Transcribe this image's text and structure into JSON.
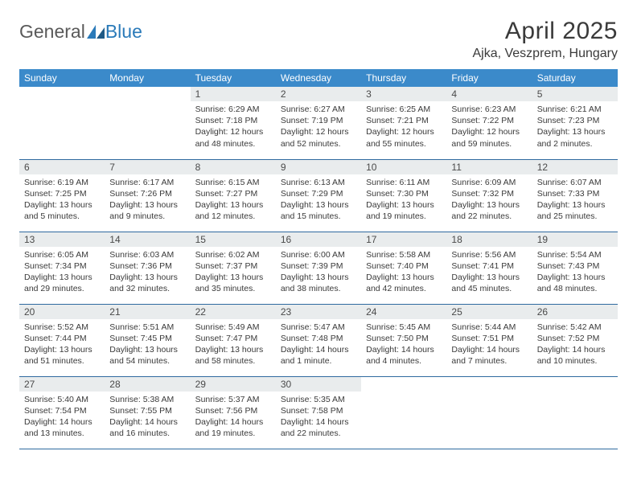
{
  "logo": {
    "word1": "General",
    "word2": "Blue"
  },
  "title": "April 2025",
  "location": "Ajka, Veszprem, Hungary",
  "colors": {
    "header_bg": "#3b8aca",
    "header_text": "#ffffff",
    "daynum_bg": "#e9eced",
    "row_border": "#2f6aa0",
    "body_text": "#3a3a3a",
    "logo_gray": "#5a5a5a",
    "logo_blue": "#2a7ab9"
  },
  "weekdays": [
    "Sunday",
    "Monday",
    "Tuesday",
    "Wednesday",
    "Thursday",
    "Friday",
    "Saturday"
  ],
  "weeks": [
    [
      null,
      null,
      {
        "n": "1",
        "sunrise": "6:29 AM",
        "sunset": "7:18 PM",
        "daylight": "12 hours and 48 minutes."
      },
      {
        "n": "2",
        "sunrise": "6:27 AM",
        "sunset": "7:19 PM",
        "daylight": "12 hours and 52 minutes."
      },
      {
        "n": "3",
        "sunrise": "6:25 AM",
        "sunset": "7:21 PM",
        "daylight": "12 hours and 55 minutes."
      },
      {
        "n": "4",
        "sunrise": "6:23 AM",
        "sunset": "7:22 PM",
        "daylight": "12 hours and 59 minutes."
      },
      {
        "n": "5",
        "sunrise": "6:21 AM",
        "sunset": "7:23 PM",
        "daylight": "13 hours and 2 minutes."
      }
    ],
    [
      {
        "n": "6",
        "sunrise": "6:19 AM",
        "sunset": "7:25 PM",
        "daylight": "13 hours and 5 minutes."
      },
      {
        "n": "7",
        "sunrise": "6:17 AM",
        "sunset": "7:26 PM",
        "daylight": "13 hours and 9 minutes."
      },
      {
        "n": "8",
        "sunrise": "6:15 AM",
        "sunset": "7:27 PM",
        "daylight": "13 hours and 12 minutes."
      },
      {
        "n": "9",
        "sunrise": "6:13 AM",
        "sunset": "7:29 PM",
        "daylight": "13 hours and 15 minutes."
      },
      {
        "n": "10",
        "sunrise": "6:11 AM",
        "sunset": "7:30 PM",
        "daylight": "13 hours and 19 minutes."
      },
      {
        "n": "11",
        "sunrise": "6:09 AM",
        "sunset": "7:32 PM",
        "daylight": "13 hours and 22 minutes."
      },
      {
        "n": "12",
        "sunrise": "6:07 AM",
        "sunset": "7:33 PM",
        "daylight": "13 hours and 25 minutes."
      }
    ],
    [
      {
        "n": "13",
        "sunrise": "6:05 AM",
        "sunset": "7:34 PM",
        "daylight": "13 hours and 29 minutes."
      },
      {
        "n": "14",
        "sunrise": "6:03 AM",
        "sunset": "7:36 PM",
        "daylight": "13 hours and 32 minutes."
      },
      {
        "n": "15",
        "sunrise": "6:02 AM",
        "sunset": "7:37 PM",
        "daylight": "13 hours and 35 minutes."
      },
      {
        "n": "16",
        "sunrise": "6:00 AM",
        "sunset": "7:39 PM",
        "daylight": "13 hours and 38 minutes."
      },
      {
        "n": "17",
        "sunrise": "5:58 AM",
        "sunset": "7:40 PM",
        "daylight": "13 hours and 42 minutes."
      },
      {
        "n": "18",
        "sunrise": "5:56 AM",
        "sunset": "7:41 PM",
        "daylight": "13 hours and 45 minutes."
      },
      {
        "n": "19",
        "sunrise": "5:54 AM",
        "sunset": "7:43 PM",
        "daylight": "13 hours and 48 minutes."
      }
    ],
    [
      {
        "n": "20",
        "sunrise": "5:52 AM",
        "sunset": "7:44 PM",
        "daylight": "13 hours and 51 minutes."
      },
      {
        "n": "21",
        "sunrise": "5:51 AM",
        "sunset": "7:45 PM",
        "daylight": "13 hours and 54 minutes."
      },
      {
        "n": "22",
        "sunrise": "5:49 AM",
        "sunset": "7:47 PM",
        "daylight": "13 hours and 58 minutes."
      },
      {
        "n": "23",
        "sunrise": "5:47 AM",
        "sunset": "7:48 PM",
        "daylight": "14 hours and 1 minute."
      },
      {
        "n": "24",
        "sunrise": "5:45 AM",
        "sunset": "7:50 PM",
        "daylight": "14 hours and 4 minutes."
      },
      {
        "n": "25",
        "sunrise": "5:44 AM",
        "sunset": "7:51 PM",
        "daylight": "14 hours and 7 minutes."
      },
      {
        "n": "26",
        "sunrise": "5:42 AM",
        "sunset": "7:52 PM",
        "daylight": "14 hours and 10 minutes."
      }
    ],
    [
      {
        "n": "27",
        "sunrise": "5:40 AM",
        "sunset": "7:54 PM",
        "daylight": "14 hours and 13 minutes."
      },
      {
        "n": "28",
        "sunrise": "5:38 AM",
        "sunset": "7:55 PM",
        "daylight": "14 hours and 16 minutes."
      },
      {
        "n": "29",
        "sunrise": "5:37 AM",
        "sunset": "7:56 PM",
        "daylight": "14 hours and 19 minutes."
      },
      {
        "n": "30",
        "sunrise": "5:35 AM",
        "sunset": "7:58 PM",
        "daylight": "14 hours and 22 minutes."
      },
      null,
      null,
      null
    ]
  ],
  "labels": {
    "sunrise": "Sunrise: ",
    "sunset": "Sunset: ",
    "daylight": "Daylight: "
  }
}
